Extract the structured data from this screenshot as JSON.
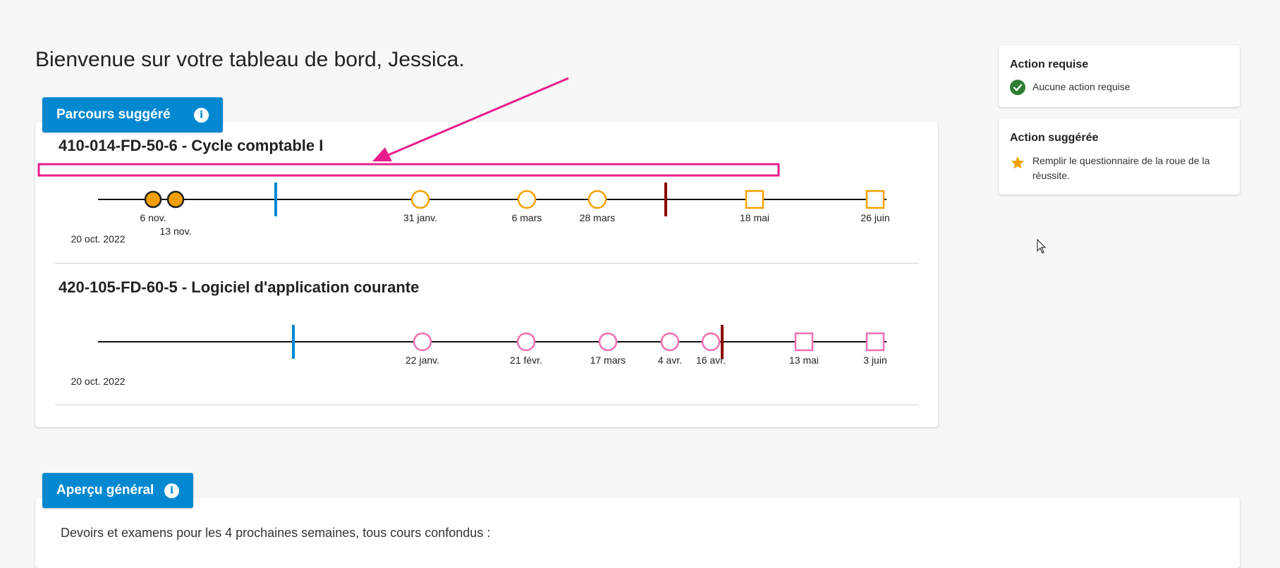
{
  "welcome": "Bienvenue sur votre tableau de bord, Jessica.",
  "parcours": {
    "tab_label": "Parcours suggéré",
    "info_icon": "i",
    "courses": [
      {
        "title": "410-014-FD-50-6 - Cycle comptable I",
        "start_date": "20 oct. 2022",
        "events": [
          {
            "date": "6 nov.",
            "shape": "circle",
            "filled": true
          },
          {
            "date": "13 nov.",
            "shape": "circle",
            "filled": true
          },
          {
            "date": "31 janv.",
            "shape": "circle",
            "filled": false
          },
          {
            "date": "6 mars",
            "shape": "circle",
            "filled": false
          },
          {
            "date": "28 mars",
            "shape": "circle",
            "filled": false
          },
          {
            "date": "18 mai",
            "shape": "square",
            "filled": false
          },
          {
            "date": "26 juin",
            "shape": "square",
            "filled": false
          }
        ],
        "color": "#f5a000"
      },
      {
        "title": "420-105-FD-60-5 - Logiciel d'application courante",
        "start_date": "20 oct. 2022",
        "events": [
          {
            "date": "22 janv.",
            "shape": "circle",
            "filled": false
          },
          {
            "date": "21 févr.",
            "shape": "circle",
            "filled": false
          },
          {
            "date": "17 mars",
            "shape": "circle",
            "filled": false
          },
          {
            "date": "4 avr.",
            "shape": "circle",
            "filled": false
          },
          {
            "date": "16 avr.",
            "shape": "circle",
            "filled": false
          },
          {
            "date": "13 mai",
            "shape": "square",
            "filled": false
          },
          {
            "date": "3 juin",
            "shape": "square",
            "filled": false
          }
        ],
        "color": "#f06eb4"
      }
    ],
    "colors": {
      "today_marker": "#0288d1",
      "deadline_marker": "#8b0000",
      "annotation": "#e91e8c"
    }
  },
  "action_requise": {
    "title": "Action requise",
    "text": "Aucune action requise",
    "icon": "check-circle-icon"
  },
  "action_suggeree": {
    "title": "Action suggérée",
    "text": "Remplir le questionnaire de la roue de la réussite.",
    "icon": "star-icon"
  },
  "apercu": {
    "tab_label": "Aperçu général",
    "info_icon": "i",
    "text": "Devoirs et examens pour les 4 prochaines semaines, tous cours confondus :"
  }
}
